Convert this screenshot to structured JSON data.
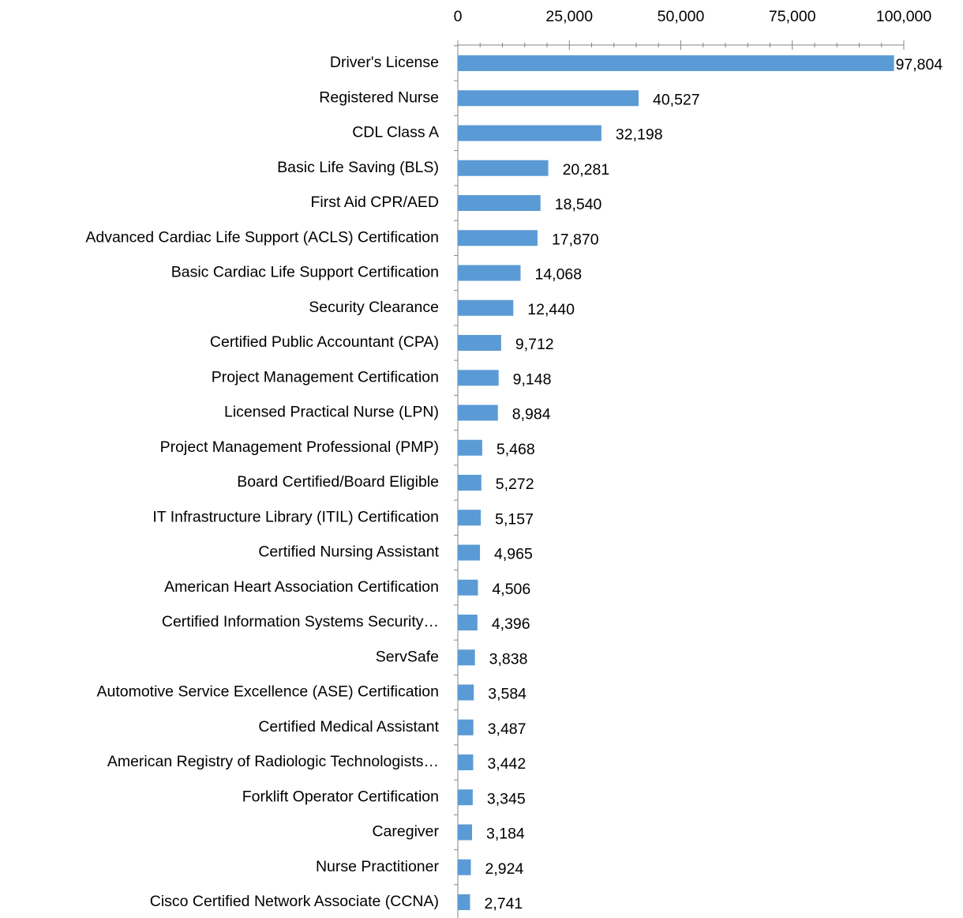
{
  "chart_data": {
    "type": "bar",
    "orientation": "horizontal",
    "categories": [
      "Driver's License",
      "Registered Nurse",
      "CDL Class A",
      "Basic Life Saving (BLS)",
      "First Aid CPR/AED",
      "Advanced Cardiac Life Support (ACLS) Certification",
      "Basic Cardiac Life Support Certification",
      "Security Clearance",
      "Certified Public Accountant (CPA)",
      "Project Management Certification",
      "Licensed Practical Nurse (LPN)",
      "Project Management Professional (PMP)",
      "Board Certified/Board Eligible",
      "IT Infrastructure Library (ITIL) Certification",
      "Certified Nursing Assistant",
      "American Heart Association Certification",
      "Certified Information Systems Security…",
      "ServSafe",
      "Automotive Service Excellence (ASE) Certification",
      "Certified Medical Assistant",
      "American Registry of Radiologic Technologists…",
      "Forklift Operator Certification",
      "Caregiver",
      "Nurse Practitioner",
      "Cisco Certified Network Associate (CCNA)"
    ],
    "values": [
      97804,
      40527,
      32198,
      20281,
      18540,
      17870,
      14068,
      12440,
      9712,
      9148,
      8984,
      5468,
      5272,
      5157,
      4965,
      4506,
      4396,
      3838,
      3584,
      3487,
      3442,
      3345,
      3184,
      2924,
      2741
    ],
    "value_labels": [
      "97,804",
      "40,527",
      "32,198",
      "20,281",
      "18,540",
      "17,870",
      "14,068",
      "12,440",
      "9,712",
      "9,148",
      "8,984",
      "5,468",
      "5,272",
      "5,157",
      "4,965",
      "4,506",
      "4,396",
      "3,838",
      "3,584",
      "3,487",
      "3,442",
      "3,345",
      "3,184",
      "2,924",
      "2,741"
    ],
    "color": "#5b9bd5",
    "xlim": [
      0,
      100000
    ],
    "xticks": [
      0,
      {
        "value": 25000,
        "label": "25,000"
      },
      {
        "value": 50000,
        "label": "50,000"
      },
      {
        "value": 75000,
        "label": "75,000"
      },
      {
        "value": 100000,
        "label": "100,000"
      }
    ],
    "xminorticks": [
      5000,
      10000,
      15000,
      20000,
      30000,
      35000,
      40000,
      45000,
      55000,
      60000,
      65000,
      70000,
      80000,
      85000,
      90000,
      95000
    ],
    "xaxis_position": "top",
    "grid": false
  }
}
